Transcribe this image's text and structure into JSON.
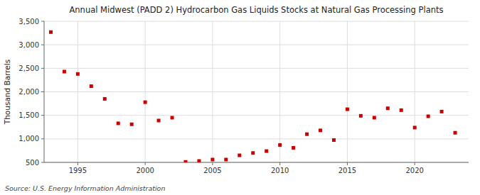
{
  "chart_data": {
    "type": "scatter",
    "title": "Annual Midwest (PADD 2) Hydrocarbon Gas Liquids Stocks at Natural Gas Processing Plants",
    "ylabel": "Thousand Barrels",
    "source": "Source: U.S. Energy Information Administration",
    "x": [
      1993,
      1994,
      1995,
      1996,
      1997,
      1998,
      1999,
      2000,
      2001,
      2002,
      2003,
      2004,
      2005,
      2006,
      2007,
      2008,
      2009,
      2010,
      2011,
      2012,
      2013,
      2014,
      2015,
      2016,
      2017,
      2018,
      2019,
      2020,
      2021,
      2022,
      2023
    ],
    "values": [
      3270,
      2430,
      2380,
      2120,
      1850,
      1330,
      1310,
      1780,
      1390,
      1450,
      510,
      530,
      560,
      560,
      650,
      700,
      740,
      870,
      810,
      1100,
      1180,
      975,
      1630,
      1490,
      1450,
      1650,
      1610,
      1240,
      1480,
      1580,
      1130
    ],
    "color": "#cc0000",
    "marker": "square",
    "xlim": [
      1992.5,
      2024
    ],
    "xticks": [
      1995,
      2000,
      2005,
      2010,
      2015,
      2020
    ],
    "ylim": [
      500,
      3500
    ],
    "yticks": [
      500,
      {
        "value": 1000,
        "label": "1,000"
      },
      {
        "value": 1500,
        "label": "1,500"
      },
      {
        "value": 2000,
        "label": "2,000"
      },
      {
        "value": 2500,
        "label": "2,500"
      },
      {
        "value": 3000,
        "label": "3,000"
      },
      {
        "value": 3500,
        "label": "3,500"
      }
    ],
    "grid": true
  }
}
